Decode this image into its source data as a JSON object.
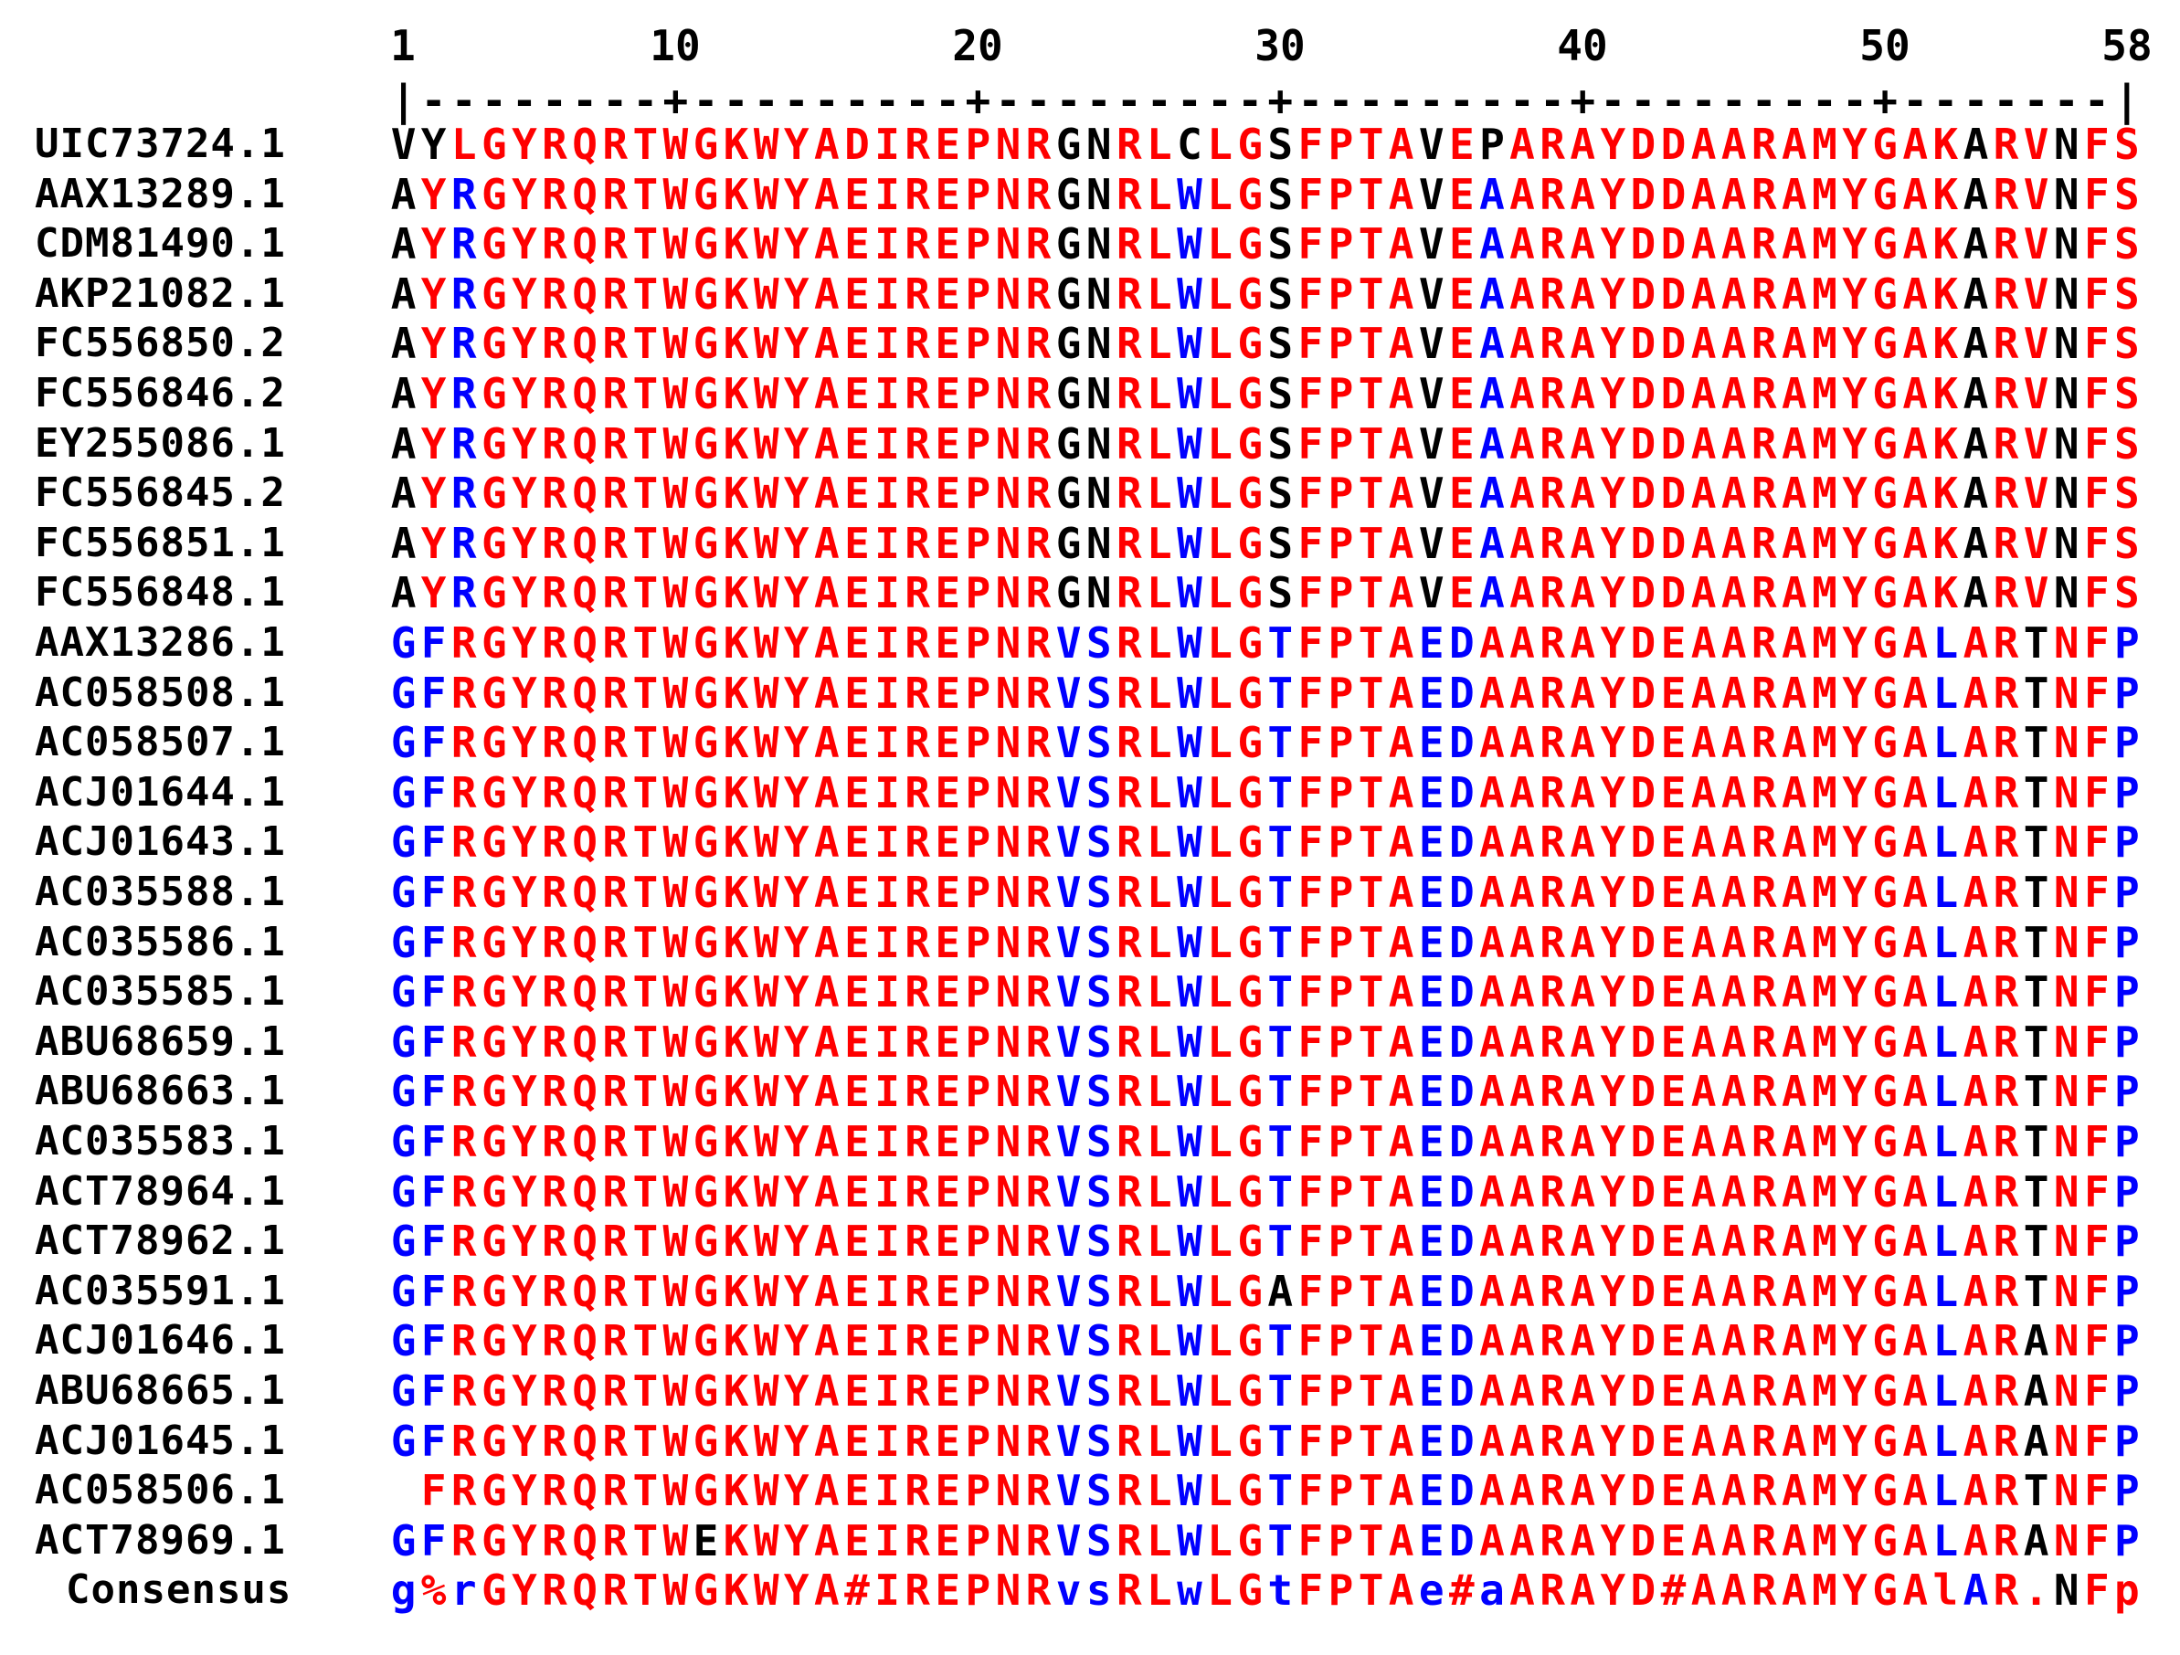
{
  "ruler": {
    "ticks": [
      "1",
      "10",
      "20",
      "30",
      "40",
      "50",
      "58"
    ],
    "line": "|--------+---------+---------+---------+---------+-------|"
  },
  "colors": {
    "high_consensus": "#ff0000",
    "low_consensus": "#0000ff",
    "neutral": "#000000"
  },
  "alignment": {
    "length": 58,
    "sequences": [
      {
        "id": "UIC73724.1",
        "seq": "VYLGYRQRTWGKWYADIREPNRGNRLCLGSFPTAVEPARAYDDAARAMYGAKARVNFS",
        "colors": "kkrrrrrrrrrrrrrrrrrrrrkkrrkrrkrrrrkrkrrrrrrrrrrrrrrrkrrkrrk"
      },
      {
        "id": "AAX13289.1",
        "seq": "AYRGYRQRTWGKWYAEIREPNRGNRLWLGSFPTAVEAARAYDDAARAMYGAKARVNFS",
        "colors": "krbrrrrrrrrrrrrrrrrrrrkkrrbrrkrrrrkrbrrrrrrrrrrrrrrrkrrkrrk"
      },
      {
        "id": "CDM81490.1",
        "seq": "AYRGYRQRTWGKWYAEIREPNRGNRLWLGSFPTAVEAARAYDDAARAMYGAKARVNFS",
        "colors": "krbrrrrrrrrrrrrrrrrrrrkkrrbrrkrrrrkrbrrrrrrrrrrrrrrrkrrkrrk"
      },
      {
        "id": "AKP21082.1",
        "seq": "AYRGYRQRTWGKWYAEIREPNRGNRLWLGSFPTAVEAARAYDDAARAMYGAKARVNFS",
        "colors": "krbrrrrrrrrrrrrrrrrrrrkkrrbrrkrrrrkrbrrrrrrrrrrrrrrrkrrkrrk"
      },
      {
        "id": "FC556850.2",
        "seq": "AYRGYRQRTWGKWYAEIREPNRGNRLWLGSFPTAVEAARAYDDAARAMYGAKARVNFS",
        "colors": "krbrrrrrrrrrrrrrrrrrrrkkrrbrrkrrrrkrbrrrrrrrrrrrrrrrkrrkrrk"
      },
      {
        "id": "FC556846.2",
        "seq": "AYRGYRQRTWGKWYAEIREPNRGNRLWLGSFPTAVEAARAYDDAARAMYGAKARVNFS",
        "colors": "krbrrrrrrrrrrrrrrrrrrrkkrrbrrkrrrrkrbrrrrrrrrrrrrrrrkrrkrrk"
      },
      {
        "id": "EY255086.1",
        "seq": "AYRGYRQRTWGKWYAEIREPNRGNRLWLGSFPTAVEAARAYDDAARAMYGAKARVNFS",
        "colors": "krbrrrrrrrrrrrrrrrrrrrkkrrbrrkrrrrkrbrrrrrrrrrrrrrrrkrrkrrk"
      },
      {
        "id": "FC556845.2",
        "seq": "AYRGYRQRTWGKWYAEIREPNRGNRLWLGSFPTAVEAARAYDDAARAMYGAKARVNFS",
        "colors": "krbrrrrrrrrrrrrrrrrrrrkkrrbrrkrrrrkrbrrrrrrrrrrrrrrrkrrkrrk"
      },
      {
        "id": "FC556851.1",
        "seq": "AYRGYRQRTWGKWYAEIREPNRGNRLWLGSFPTAVEAARAYDDAARAMYGAKARVNFS",
        "colors": "krbrrrrrrrrrrrrrrrrrrrkkrrbrrkrrrrkrbrrrrrrrrrrrrrrrkrrkrrk"
      },
      {
        "id": "FC556848.1",
        "seq": "AYRGYRQRTWGKWYAEIREPNRGNRLWLGSFPTAVEAARAYDDAARAMYGAKARVNFS",
        "colors": "krbrrrrrrrrrrrrrrrrrrrkkrrbrrkrrrrkrbrrrrrrrrrrrrrrrkrrkrrk"
      },
      {
        "id": "AAX13286.1",
        "seq": "GFRGYRQRTWGKWYAEIREPNRVSRLWLGTFPTAEDAARAYDEAARAMYGALARTNFP",
        "colors": "bbrrrrrrrrrrrrrrrrrrrrbbrrbrrbrrrrbbrrrrrrrrrrrrrrrbrrkrrb"
      },
      {
        "id": "AC058508.1",
        "seq": "GFRGYRQRTWGKWYAEIREPNRVSRLWLGTFPTAEDAARAYDEAARAMYGALARTNFP",
        "colors": "bbrrrrrrrrrrrrrrrrrrrrbbrrbrrbrrrrbbrrrrrrrrrrrrrrrbrrkrrb"
      },
      {
        "id": "AC058507.1",
        "seq": "GFRGYRQRTWGKWYAEIREPNRVSRLWLGTFPTAEDAARAYDEAARAMYGALARTNFP",
        "colors": "bbrrrrrrrrrrrrrrrrrrrrbbrrbrrbrrrrbbrrrrrrrrrrrrrrrbrrkrrb"
      },
      {
        "id": "ACJ01644.1",
        "seq": "GFRGYRQRTWGKWYAEIREPNRVSRLWLGTFPTAEDAARAYDEAARAMYGALARTNFP",
        "colors": "bbrrrrrrrrrrrrrrrrrrrrbbrrbrrbrrrrbbrrrrrrrrrrrrrrrbrrkrrb"
      },
      {
        "id": "ACJ01643.1",
        "seq": "GFRGYRQRTWGKWYAEIREPNRVSRLWLGTFPTAEDAARAYDEAARAMYGALARTNFP",
        "colors": "bbrrrrrrrrrrrrrrrrrrrrbbrrbrrbrrrrbbrrrrrrrrrrrrrrrbrrkrrb"
      },
      {
        "id": "AC035588.1",
        "seq": "GFRGYRQRTWGKWYAEIREPNRVSRLWLGTFPTAEDAARAYDEAARAMYGALARTNFP",
        "colors": "bbrrrrrrrrrrrrrrrrrrrrbbrrbrrbrrrrbbrrrrrrrrrrrrrrrbrrkrrb"
      },
      {
        "id": "AC035586.1",
        "seq": "GFRGYRQRTWGKWYAEIREPNRVSRLWLGTFPTAEDAARAYDEAARAMYGALARTNFP",
        "colors": "bbrrrrrrrrrrrrrrrrrrrrbbrrbrrbrrrrbbrrrrrrrrrrrrrrrbrrkrrb"
      },
      {
        "id": "AC035585.1",
        "seq": "GFRGYRQRTWGKWYAEIREPNRVSRLWLGTFPTAEDAARAYDEAARAMYGALARTNFP",
        "colors": "bbrrrrrrrrrrrrrrrrrrrrbbrrbrrbrrrrbbrrrrrrrrrrrrrrrbrrkrrb"
      },
      {
        "id": "ABU68659.1",
        "seq": "GFRGYRQRTWGKWYAEIREPNRVSRLWLGTFPTAEDAARAYDEAARAMYGALARTNFP",
        "colors": "bbrrrrrrrrrrrrrrrrrrrrbbrrbrrbrrrrbbrrrrrrrrrrrrrrrbrrkrrb"
      },
      {
        "id": "ABU68663.1",
        "seq": "GFRGYRQRTWGKWYAEIREPNRVSRLWLGTFPTAEDAARAYDEAARAMYGALARTNFP",
        "colors": "bbrrrrrrrrrrrrrrrrrrrrbbrrbrrbrrrrbbrrrrrrrrrrrrrrrbrrkrrb"
      },
      {
        "id": "AC035583.1",
        "seq": "GFRGYRQRTWGKWYAEIREPNRVSRLWLGTFPTAEDAARAYDEAARAMYGALARTNFP",
        "colors": "bbrrrrrrrrrrrrrrrrrrrrbbrrbrrbrrrrbbrrrrrrrrrrrrrrrbrrkrrb"
      },
      {
        "id": "ACT78964.1",
        "seq": "GFRGYRQRTWGKWYAEIREPNRVSRLWLGTFPTAEDAARAYDEAARAMYGALARTNFP",
        "colors": "bbrrrrrrrrrrrrrrrrrrrrbbrrbrrbrrrrbbrrrrrrrrrrrrrrrbrrkrrb"
      },
      {
        "id": "ACT78962.1",
        "seq": "GFRGYRQRTWGKWYAEIREPNRVSRLWLGTFPTAEDAARAYDEAARAMYGALARTNFP",
        "colors": "bbrrrrrrrrrrrrrrrrrrrrbbrrbrrbrrrrbbrrrrrrrrrrrrrrrbrrkrrb"
      },
      {
        "id": "AC035591.1",
        "seq": "GFRGYRQRTWGKWYAEIREPNRVSRLWLGAFPTAEDAARAYDEAARAMYGALARTNFP",
        "colors": "bbrrrrrrrrrrrrrrrrrrrrbbrrbrrkrrrrbbrrrrrrrrrrrrrrrbrrkrrb"
      },
      {
        "id": "ACJ01646.1",
        "seq": "GFRGYRQRTWGKWYAEIREPNRVSRLWLGTFPTAEDAARAYDEAARAMYGALARANFP",
        "colors": "bbrrrrrrrrrrrrrrrrrrrrbbrrbrrbrrrrbbrrrrrrrrrrrrrrrbrrkrrb"
      },
      {
        "id": "ABU68665.1",
        "seq": "GFRGYRQRTWGKWYAEIREPNRVSRLWLGTFPTAEDAARAYDEAARAMYGALARANFP",
        "colors": "bbrrrrrrrrrrrrrrrrrrrrbbrrbrrbrrrrbbrrrrrrrrrrrrrrrbrrkrrb"
      },
      {
        "id": "ACJ01645.1",
        "seq": "GFRGYRQRTWGKWYAEIREPNRVSRLWLGTFPTAEDAARAYDEAARAMYGALARANFP",
        "colors": "bbrrrrrrrrrrrrrrrrrrrrbbrrbrrbrrrrbbrrrrrrrrrrrrrrrbrrkrrb"
      },
      {
        "id": "AC058506.1",
        "seq": " FRGYRQRTWGKWYAEIREPNRVSRLWLGTFPTAEDAARAYDEAARAMYGALARTNFP",
        "colors": "krrrrrrrrrrrrrrrrrrrrrbbrrbrrbrrrrbbrrrrrrrrrrrrrrrbrrkrrb"
      },
      {
        "id": "ACT78969.1",
        "seq": "GFRGYRQRTWEKWYAEIREPNRVSRLWLGTFPTAEDAARAYDEAARAMYGALARANFP",
        "colors": "bbrrrrrrrrkrrrrrrrrrrrbbrrbrrbrrrrbbrrrrrrrrrrrrrrrbrrkrrb"
      }
    ],
    "consensus": {
      "label": "Consensus",
      "seq": "g%rGYRQRTWGKWYA#IREPNRvsRLwLGtFPTAe#aARAYD#AARAMYGAlAR.NFp",
      "colors": "brbrrrrrrrrrrrrrrrrrrrbbrrbrrbrrrrbrbrrrrrrrrrrrrrrrbrrkrrb"
    }
  }
}
